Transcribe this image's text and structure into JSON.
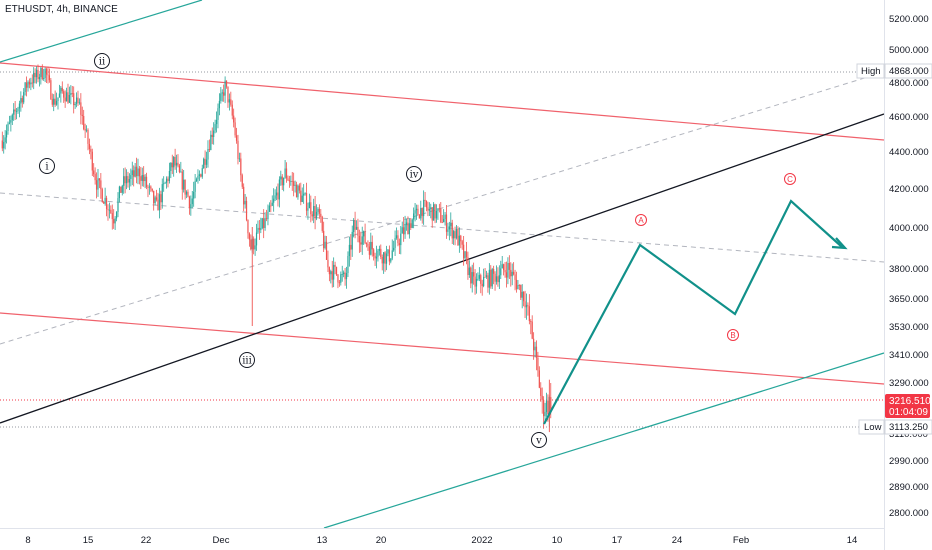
{
  "header": {
    "symbol_line": "ETHUSDT, 4h, BINANCE"
  },
  "colors": {
    "up": "#26a69a",
    "down": "#ef5350",
    "red_channel": "#f0626c",
    "teal": "#26a69a",
    "black_line": "#131722",
    "dashed": "#b2b5be",
    "projection": "#11918a",
    "current_price_bg": "#f23645",
    "abc": "#f23645"
  },
  "chart_data": {
    "type": "candlestick",
    "symbol": "ETHUSDT",
    "timeframe": "4h",
    "exchange": "BINANCE",
    "y_axis_ticks": [
      "5200.000",
      "5000.000",
      "4800.000",
      "4600.000",
      "4400.000",
      "4200.000",
      "4000.000",
      "3800.000",
      "3650.000",
      "3530.000",
      "3410.000",
      "3290.000",
      "3110.000",
      "2990.000",
      "2890.000",
      "2800.000"
    ],
    "x_axis_ticks": [
      "8",
      "15",
      "22",
      "Dec",
      "13",
      "20",
      "2022",
      "10",
      "17",
      "24",
      "Feb",
      "14"
    ],
    "price_labels": {
      "high": {
        "label": "High",
        "value": "4868.000"
      },
      "current": {
        "value": "3216.510",
        "countdown": "01:04:09"
      },
      "low": {
        "label": "Low",
        "value": "3113.250"
      }
    },
    "wave_labels": [
      "i",
      "ii",
      "iii",
      "iv",
      "v"
    ],
    "correction_labels": [
      "A",
      "B",
      "C"
    ],
    "candle_anchors": [
      {
        "date": "2021-11-05",
        "price": 4460
      },
      {
        "date": "2021-11-06",
        "price": 4560
      },
      {
        "date": "2021-11-08",
        "price": 4800
      },
      {
        "date": "2021-11-10",
        "price": 4868
      },
      {
        "date": "2021-11-11",
        "price": 4680
      },
      {
        "date": "2021-11-12",
        "price": 4740
      },
      {
        "date": "2021-11-14",
        "price": 4660
      },
      {
        "date": "2021-11-16",
        "price": 4230
      },
      {
        "date": "2021-11-18",
        "price": 4050
      },
      {
        "date": "2021-11-19",
        "price": 4220
      },
      {
        "date": "2021-11-21",
        "price": 4290
      },
      {
        "date": "2021-11-23",
        "price": 4100
      },
      {
        "date": "2021-11-25",
        "price": 4340
      },
      {
        "date": "2021-11-27",
        "price": 4120
      },
      {
        "date": "2021-11-29",
        "price": 4420
      },
      {
        "date": "2021-12-01",
        "price": 4780
      },
      {
        "date": "2021-12-02",
        "price": 4560
      },
      {
        "date": "2021-12-03",
        "price": 4200
      },
      {
        "date": "2021-12-04",
        "price": 3900
      },
      {
        "date": "2021-12-06",
        "price": 4050
      },
      {
        "date": "2021-12-08",
        "price": 4280
      },
      {
        "date": "2021-12-10",
        "price": 4150
      },
      {
        "date": "2021-12-12",
        "price": 4050
      },
      {
        "date": "2021-12-13",
        "price": 3800
      },
      {
        "date": "2021-12-15",
        "price": 3740
      },
      {
        "date": "2021-12-16",
        "price": 4000
      },
      {
        "date": "2021-12-18",
        "price": 3900
      },
      {
        "date": "2021-12-20",
        "price": 3850
      },
      {
        "date": "2021-12-22",
        "price": 3990
      },
      {
        "date": "2021-12-24",
        "price": 4100
      },
      {
        "date": "2021-12-26",
        "price": 4060
      },
      {
        "date": "2021-12-28",
        "price": 3960
      },
      {
        "date": "2021-12-30",
        "price": 3720
      },
      {
        "date": "2022-01-01",
        "price": 3750
      },
      {
        "date": "2022-01-03",
        "price": 3800
      },
      {
        "date": "2022-01-05",
        "price": 3650
      },
      {
        "date": "2022-01-06",
        "price": 3450
      },
      {
        "date": "2022-01-07",
        "price": 3200
      },
      {
        "date": "2022-01-08",
        "price": 3216.51
      }
    ]
  }
}
